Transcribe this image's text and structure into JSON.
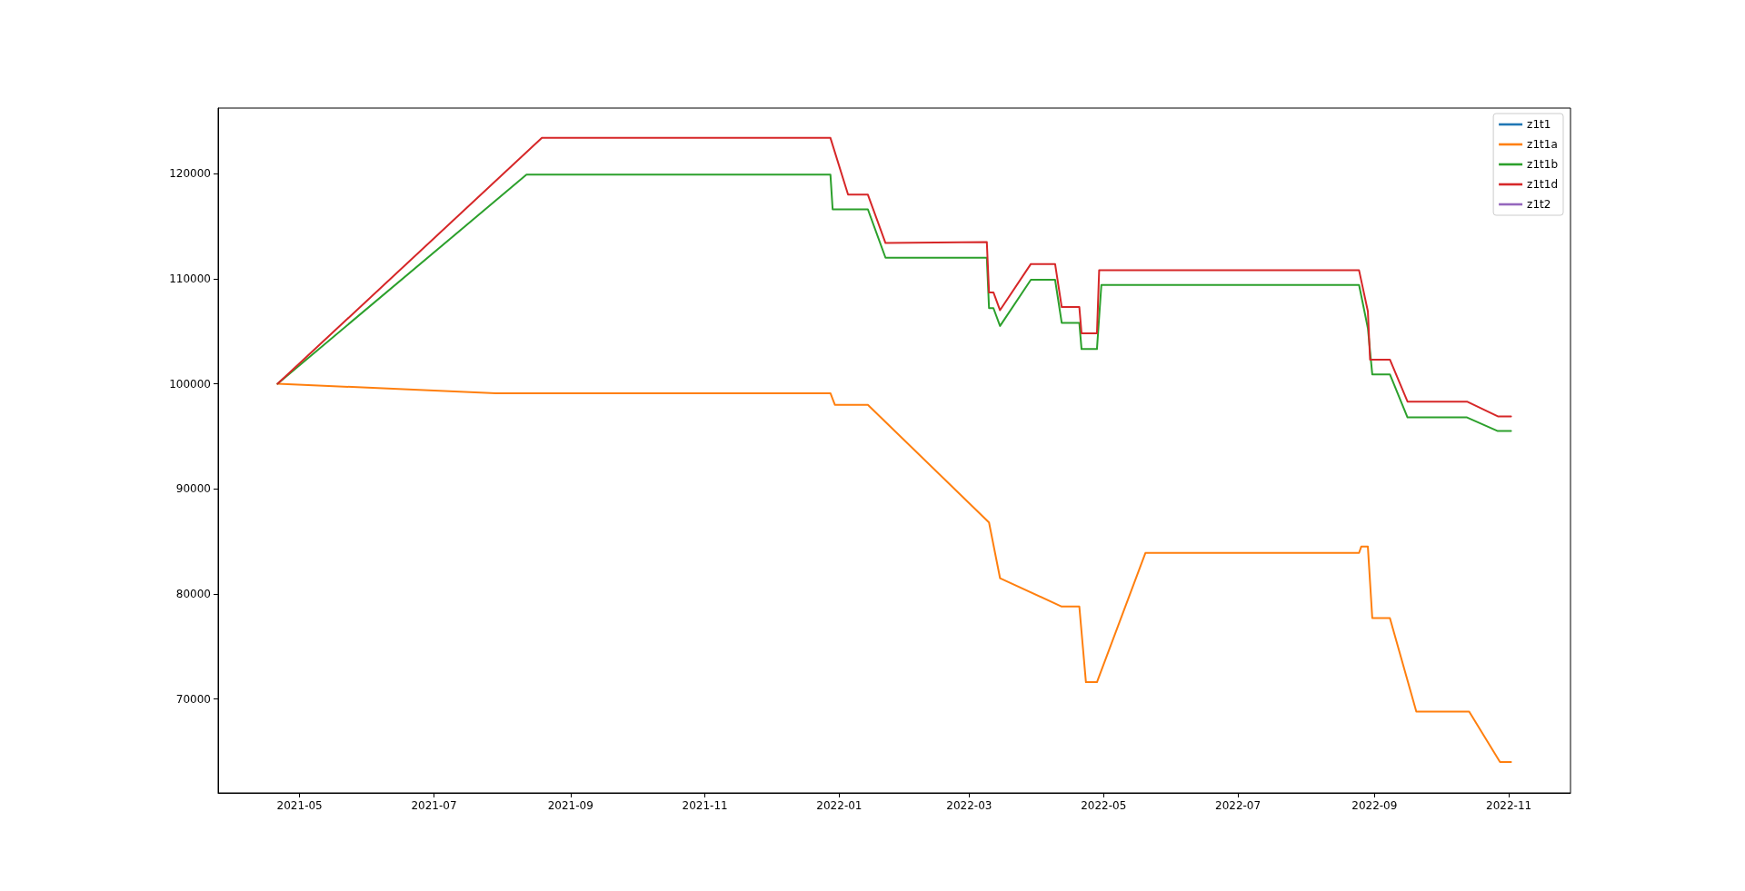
{
  "chart_data": {
    "type": "line",
    "legend": "top right",
    "grid": false,
    "marker": "none",
    "line_style": "solid",
    "xlim": [
      "2021-03-25",
      "2022-11-29"
    ],
    "ylim": [
      61060,
      126240
    ],
    "xticks": [
      {
        "value": "2021-05-01",
        "label": "2021-05"
      },
      {
        "value": "2021-07-01",
        "label": "2021-07"
      },
      {
        "value": "2021-09-01",
        "label": "2021-09"
      },
      {
        "value": "2021-11-01",
        "label": "2021-11"
      },
      {
        "value": "2022-01-01",
        "label": "2022-01"
      },
      {
        "value": "2022-03-01",
        "label": "2022-03"
      },
      {
        "value": "2022-05-01",
        "label": "2022-05"
      },
      {
        "value": "2022-07-01",
        "label": "2022-07"
      },
      {
        "value": "2022-09-01",
        "label": "2022-09"
      },
      {
        "value": "2022-11-01",
        "label": "2022-11"
      }
    ],
    "yticks": [
      70000,
      80000,
      90000,
      100000,
      110000,
      120000
    ],
    "series": [
      {
        "name": "z1t1",
        "color": "#1f77b4"
      },
      {
        "name": "z1t1a",
        "color": "#ff7f0e",
        "x": [
          "2021-04-21",
          "2021-07-29",
          "2021-12-28",
          "2021-12-30",
          "2022-01-14",
          "2022-03-10",
          "2022-03-15",
          "2022-04-12",
          "2022-04-20",
          "2022-04-23",
          "2022-04-28",
          "2022-05-20",
          "2022-08-25",
          "2022-08-26",
          "2022-08-29",
          "2022-08-31",
          "2022-09-08",
          "2022-09-20",
          "2022-10-14",
          "2022-10-28",
          "2022-11-02"
        ],
        "values": [
          100000,
          99100,
          99100,
          98000,
          98000,
          86800,
          81500,
          78800,
          78800,
          71600,
          71600,
          83900,
          83900,
          84500,
          84500,
          77700,
          77700,
          68800,
          68800,
          64000,
          64000
        ]
      },
      {
        "name": "z1t1b",
        "color": "#2ca02c",
        "x": [
          "2021-04-21",
          "2021-08-12",
          "2021-12-28",
          "2021-12-29",
          "2022-01-14",
          "2022-01-22",
          "2022-03-09",
          "2022-03-10",
          "2022-03-12",
          "2022-03-15",
          "2022-03-29",
          "2022-04-09",
          "2022-04-12",
          "2022-04-20",
          "2022-04-21",
          "2022-04-28",
          "2022-04-30",
          "2022-08-25",
          "2022-08-29",
          "2022-08-31",
          "2022-09-08",
          "2022-09-16",
          "2022-10-13",
          "2022-10-27",
          "2022-11-02"
        ],
        "values": [
          100000,
          119900,
          119900,
          116600,
          116600,
          112000,
          112000,
          107200,
          107200,
          105500,
          109900,
          109900,
          105800,
          105800,
          103300,
          103300,
          109400,
          109400,
          105300,
          100900,
          100900,
          96800,
          96800,
          95500,
          95500
        ]
      },
      {
        "name": "z1t1d",
        "color": "#d62728",
        "x": [
          "2021-04-21",
          "2021-08-19",
          "2021-12-28",
          "2022-01-05",
          "2022-01-14",
          "2022-01-22",
          "2022-03-09",
          "2022-03-10",
          "2022-03-12",
          "2022-03-15",
          "2022-03-29",
          "2022-04-09",
          "2022-04-12",
          "2022-04-20",
          "2022-04-21",
          "2022-04-28",
          "2022-04-29",
          "2022-08-25",
          "2022-08-29",
          "2022-08-30",
          "2022-09-08",
          "2022-09-16",
          "2022-10-13",
          "2022-10-27",
          "2022-11-02"
        ],
        "values": [
          100000,
          123400,
          123400,
          118000,
          118000,
          113400,
          113500,
          108700,
          108700,
          107000,
          111400,
          111400,
          107300,
          107300,
          104800,
          104800,
          110800,
          110800,
          106900,
          102300,
          102300,
          98300,
          98300,
          96900,
          96900
        ]
      },
      {
        "name": "z1t2",
        "color": "#9467bd"
      }
    ]
  }
}
